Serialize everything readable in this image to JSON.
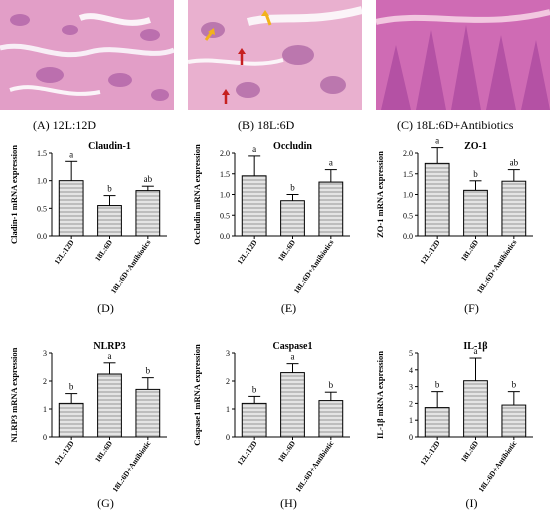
{
  "histology": [
    {
      "label": "(A) 12L:12D"
    },
    {
      "label": "(B) 18L:6D"
    },
    {
      "label": "(C) 18L:6D+Antibiotics"
    }
  ],
  "colors": {
    "bar_fill": "#bdbdbd",
    "stain_pink": "#e3a2c6",
    "stain_purple": "#8e3f8f",
    "arrow_yellow": "#f2b21c",
    "arrow_red": "#c62020"
  },
  "chart_data": [
    {
      "type": "bar",
      "panel": "(D)",
      "title": "Claudin-1",
      "ylabel": "Cladin-1 mRNA expression",
      "categories": [
        "12L:12D",
        "18L:6D",
        "18L:6D+Antibiotics"
      ],
      "values": [
        1.0,
        0.55,
        0.82
      ],
      "errors": [
        0.35,
        0.18,
        0.08
      ],
      "letters": [
        "a",
        "b",
        "ab"
      ],
      "ylim": [
        0,
        1.5
      ],
      "yticks": [
        "0.0",
        "0.5",
        "1.0",
        "1.5"
      ]
    },
    {
      "type": "bar",
      "panel": "(E)",
      "title": "Occludin",
      "ylabel": "Occludin mRNA expression",
      "categories": [
        "12L:12D",
        "18L:6D",
        "18L:6D+Antibiotics"
      ],
      "values": [
        1.45,
        0.85,
        1.3
      ],
      "errors": [
        0.48,
        0.15,
        0.3
      ],
      "letters": [
        "a",
        "b",
        "a"
      ],
      "ylim": [
        0,
        2.0
      ],
      "yticks": [
        "0.0",
        "0.5",
        "1.0",
        "1.5",
        "2.0"
      ]
    },
    {
      "type": "bar",
      "panel": "(F)",
      "title": "ZO-1",
      "ylabel": "ZO-1 mRNA expression",
      "categories": [
        "12L:12D",
        "18L:6D",
        "18L:6D+Antibiotics"
      ],
      "values": [
        1.75,
        1.1,
        1.32
      ],
      "errors": [
        0.38,
        0.23,
        0.28
      ],
      "letters": [
        "a",
        "b",
        "ab"
      ],
      "ylim": [
        0,
        2.0
      ],
      "yticks": [
        "0.0",
        "0.5",
        "1.0",
        "1.5",
        "2.0"
      ]
    },
    {
      "type": "bar",
      "panel": "(G)",
      "title": "NLRP3",
      "ylabel": "NLRP3 mRNA expression",
      "categories": [
        "12L:12D",
        "18L:6D",
        "18L:6D+Antibiotic"
      ],
      "values": [
        1.2,
        2.25,
        1.7
      ],
      "errors": [
        0.35,
        0.4,
        0.42
      ],
      "letters": [
        "b",
        "a",
        "b"
      ],
      "ylim": [
        0,
        3
      ],
      "yticks": [
        "0",
        "1",
        "2",
        "3"
      ]
    },
    {
      "type": "bar",
      "panel": "(H)",
      "title": "Caspase1",
      "ylabel": "Caspase1 mRNA expression",
      "categories": [
        "12L:12D",
        "18L:6D",
        "18L:6D+Antibiotic"
      ],
      "values": [
        1.2,
        2.3,
        1.3
      ],
      "errors": [
        0.25,
        0.32,
        0.3
      ],
      "letters": [
        "b",
        "a",
        "b"
      ],
      "ylim": [
        0,
        3
      ],
      "yticks": [
        "0",
        "1",
        "2",
        "3"
      ]
    },
    {
      "type": "bar",
      "panel": "(I)",
      "title": "IL-1β",
      "ylabel": "IL-1β mRNA expression",
      "categories": [
        "12L:12D",
        "18L:6D",
        "18L:6D+Antibiotic"
      ],
      "values": [
        1.75,
        3.35,
        1.9
      ],
      "errors": [
        0.95,
        1.35,
        0.8
      ],
      "letters": [
        "b",
        "a",
        "b"
      ],
      "ylim": [
        0,
        5
      ],
      "yticks": [
        "0",
        "1",
        "2",
        "3",
        "4",
        "5"
      ]
    }
  ]
}
